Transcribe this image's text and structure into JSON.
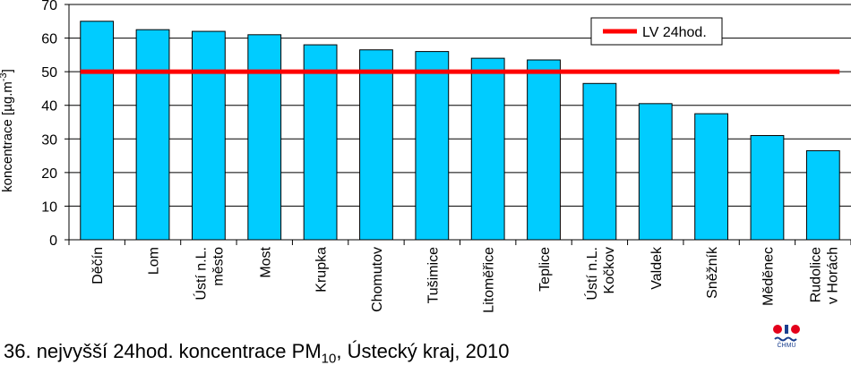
{
  "caption": {
    "prefix": "36. nejvyšší 24hod. koncentrace PM",
    "subscript": "10",
    "suffix": ", Ústecký kraj, 2010"
  },
  "logo": {
    "text": "ČHMÚ"
  },
  "chart_data": {
    "type": "bar",
    "ylabel": "koncentrace [µg.m-3]",
    "ylim": [
      0,
      70
    ],
    "yticks": [
      0,
      10,
      20,
      30,
      40,
      50,
      60,
      70
    ],
    "grid": "horizontal",
    "categories": [
      [
        "Děčín"
      ],
      [
        "Lom"
      ],
      [
        "Ústí n.L.",
        "město"
      ],
      [
        "Most"
      ],
      [
        "Krupka"
      ],
      [
        "Chomutov"
      ],
      [
        "Tušimice"
      ],
      [
        "Litoměřice"
      ],
      [
        "Teplice"
      ],
      [
        "Ústí n.L.",
        "Kočkov"
      ],
      [
        "Valdek"
      ],
      [
        "Sněžník"
      ],
      [
        "Měděnec"
      ],
      [
        "Rudolice",
        "v Horách"
      ]
    ],
    "values": [
      65,
      62.5,
      62,
      61,
      58,
      56.5,
      56,
      54,
      53.5,
      46.5,
      40.5,
      37.5,
      31,
      26.5
    ],
    "bar_color": "#00CCFF",
    "limit_line": {
      "name": "LV 24hod.",
      "value": 50,
      "color": "#FF0000"
    },
    "legend_position": "top-right"
  }
}
